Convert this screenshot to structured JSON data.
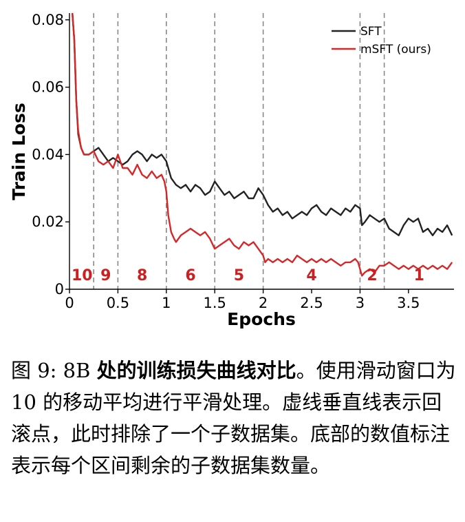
{
  "chart_data": {
    "type": "line",
    "xlabel": "Epochs",
    "ylabel": "Train Loss",
    "xlim": [
      0,
      3.97
    ],
    "ylim": [
      0,
      0.082
    ],
    "x_ticks": [
      "0",
      "0.5",
      "1",
      "1.5",
      "2",
      "2.5",
      "3",
      "3.5"
    ],
    "y_ticks": [
      "0",
      "0.02",
      "0.04",
      "0.06",
      "0.08"
    ],
    "grid": false,
    "legend_position": "top-right",
    "rollback_points": [
      0.25,
      0.5,
      1.0,
      1.5,
      2.0,
      3.0,
      3.25
    ],
    "segment_labels": [
      {
        "x": 0.13,
        "text": "10"
      },
      {
        "x": 0.375,
        "text": "9"
      },
      {
        "x": 0.75,
        "text": "8"
      },
      {
        "x": 1.25,
        "text": "6"
      },
      {
        "x": 1.75,
        "text": "5"
      },
      {
        "x": 2.5,
        "text": "4"
      },
      {
        "x": 3.125,
        "text": "2"
      },
      {
        "x": 3.61,
        "text": "1"
      }
    ],
    "series": [
      {
        "name": "SFT",
        "color": "#222222",
        "points": [
          [
            0.03,
            0.082
          ],
          [
            0.05,
            0.074
          ],
          [
            0.07,
            0.056
          ],
          [
            0.09,
            0.046
          ],
          [
            0.12,
            0.042
          ],
          [
            0.15,
            0.04
          ],
          [
            0.2,
            0.04
          ],
          [
            0.25,
            0.041
          ],
          [
            0.3,
            0.042
          ],
          [
            0.35,
            0.04
          ],
          [
            0.4,
            0.038
          ],
          [
            0.45,
            0.039
          ],
          [
            0.5,
            0.038
          ],
          [
            0.55,
            0.037
          ],
          [
            0.6,
            0.038
          ],
          [
            0.65,
            0.04
          ],
          [
            0.7,
            0.041
          ],
          [
            0.75,
            0.04
          ],
          [
            0.8,
            0.038
          ],
          [
            0.85,
            0.04
          ],
          [
            0.9,
            0.039
          ],
          [
            0.95,
            0.04
          ],
          [
            1.0,
            0.038
          ],
          [
            1.05,
            0.033
          ],
          [
            1.1,
            0.031
          ],
          [
            1.15,
            0.03
          ],
          [
            1.2,
            0.031
          ],
          [
            1.25,
            0.029
          ],
          [
            1.3,
            0.031
          ],
          [
            1.35,
            0.03
          ],
          [
            1.4,
            0.028
          ],
          [
            1.45,
            0.029
          ],
          [
            1.5,
            0.032
          ],
          [
            1.55,
            0.03
          ],
          [
            1.6,
            0.028
          ],
          [
            1.65,
            0.029
          ],
          [
            1.7,
            0.027
          ],
          [
            1.75,
            0.028
          ],
          [
            1.8,
            0.029
          ],
          [
            1.85,
            0.027
          ],
          [
            1.9,
            0.027
          ],
          [
            1.95,
            0.03
          ],
          [
            2.0,
            0.028
          ],
          [
            2.05,
            0.025
          ],
          [
            2.1,
            0.023
          ],
          [
            2.15,
            0.024
          ],
          [
            2.2,
            0.022
          ],
          [
            2.25,
            0.023
          ],
          [
            2.3,
            0.021
          ],
          [
            2.35,
            0.022
          ],
          [
            2.4,
            0.023
          ],
          [
            2.45,
            0.022
          ],
          [
            2.5,
            0.024
          ],
          [
            2.55,
            0.025
          ],
          [
            2.6,
            0.023
          ],
          [
            2.65,
            0.022
          ],
          [
            2.7,
            0.024
          ],
          [
            2.75,
            0.023
          ],
          [
            2.8,
            0.022
          ],
          [
            2.85,
            0.024
          ],
          [
            2.9,
            0.023
          ],
          [
            2.95,
            0.025
          ],
          [
            3.0,
            0.024
          ],
          [
            3.02,
            0.019
          ],
          [
            3.05,
            0.02
          ],
          [
            3.1,
            0.022
          ],
          [
            3.15,
            0.021
          ],
          [
            3.2,
            0.02
          ],
          [
            3.25,
            0.021
          ],
          [
            3.3,
            0.018
          ],
          [
            3.35,
            0.017
          ],
          [
            3.4,
            0.016
          ],
          [
            3.45,
            0.019
          ],
          [
            3.5,
            0.021
          ],
          [
            3.55,
            0.02
          ],
          [
            3.6,
            0.021
          ],
          [
            3.65,
            0.017
          ],
          [
            3.7,
            0.018
          ],
          [
            3.75,
            0.016
          ],
          [
            3.8,
            0.018
          ],
          [
            3.85,
            0.017
          ],
          [
            3.9,
            0.019
          ],
          [
            3.95,
            0.016
          ]
        ]
      },
      {
        "name": "mSFT (ours)",
        "color": "#d62728",
        "points": [
          [
            0.03,
            0.082
          ],
          [
            0.05,
            0.074
          ],
          [
            0.07,
            0.056
          ],
          [
            0.09,
            0.047
          ],
          [
            0.12,
            0.042
          ],
          [
            0.15,
            0.04
          ],
          [
            0.2,
            0.04
          ],
          [
            0.25,
            0.041
          ],
          [
            0.3,
            0.038
          ],
          [
            0.35,
            0.037
          ],
          [
            0.4,
            0.038
          ],
          [
            0.45,
            0.036
          ],
          [
            0.5,
            0.04
          ],
          [
            0.55,
            0.036
          ],
          [
            0.6,
            0.036
          ],
          [
            0.65,
            0.034
          ],
          [
            0.7,
            0.037
          ],
          [
            0.75,
            0.034
          ],
          [
            0.8,
            0.033
          ],
          [
            0.85,
            0.035
          ],
          [
            0.9,
            0.033
          ],
          [
            0.95,
            0.034
          ],
          [
            0.98,
            0.032
          ],
          [
            1.0,
            0.029
          ],
          [
            1.02,
            0.022
          ],
          [
            1.05,
            0.017
          ],
          [
            1.08,
            0.015
          ],
          [
            1.1,
            0.014
          ],
          [
            1.15,
            0.016
          ],
          [
            1.2,
            0.017
          ],
          [
            1.25,
            0.018
          ],
          [
            1.3,
            0.017
          ],
          [
            1.35,
            0.016
          ],
          [
            1.4,
            0.017
          ],
          [
            1.45,
            0.015
          ],
          [
            1.5,
            0.012
          ],
          [
            1.55,
            0.013
          ],
          [
            1.6,
            0.014
          ],
          [
            1.65,
            0.015
          ],
          [
            1.7,
            0.013
          ],
          [
            1.75,
            0.012
          ],
          [
            1.8,
            0.014
          ],
          [
            1.85,
            0.013
          ],
          [
            1.9,
            0.014
          ],
          [
            1.95,
            0.012
          ],
          [
            2.0,
            0.01
          ],
          [
            2.02,
            0.008
          ],
          [
            2.05,
            0.009
          ],
          [
            2.1,
            0.008
          ],
          [
            2.15,
            0.009
          ],
          [
            2.2,
            0.008
          ],
          [
            2.25,
            0.009
          ],
          [
            2.3,
            0.008
          ],
          [
            2.35,
            0.01
          ],
          [
            2.4,
            0.009
          ],
          [
            2.45,
            0.008
          ],
          [
            2.5,
            0.009
          ],
          [
            2.55,
            0.008
          ],
          [
            2.6,
            0.009
          ],
          [
            2.65,
            0.008
          ],
          [
            2.7,
            0.009
          ],
          [
            2.75,
            0.008
          ],
          [
            2.8,
            0.007
          ],
          [
            2.85,
            0.008
          ],
          [
            2.9,
            0.008
          ],
          [
            2.95,
            0.009
          ],
          [
            2.98,
            0.008
          ],
          [
            3.0,
            0.006
          ],
          [
            3.02,
            0.004
          ],
          [
            3.05,
            0.005
          ],
          [
            3.1,
            0.006
          ],
          [
            3.15,
            0.005
          ],
          [
            3.2,
            0.007
          ],
          [
            3.25,
            0.007
          ],
          [
            3.3,
            0.008
          ],
          [
            3.35,
            0.007
          ],
          [
            3.4,
            0.006
          ],
          [
            3.45,
            0.007
          ],
          [
            3.5,
            0.006
          ],
          [
            3.55,
            0.007
          ],
          [
            3.6,
            0.006
          ],
          [
            3.65,
            0.007
          ],
          [
            3.7,
            0.006
          ],
          [
            3.75,
            0.007
          ],
          [
            3.8,
            0.006
          ],
          [
            3.85,
            0.007
          ],
          [
            3.9,
            0.006
          ],
          [
            3.95,
            0.008
          ]
        ]
      }
    ]
  },
  "caption": {
    "prefix": "图 9: 8B ",
    "bold": "处的训练损失曲线对比",
    "rest": "。使用滑动窗口为 10 的移动平均进行平滑处理。虚线垂直线表示回滚点，此时排除了一个子数据集。底部的数值标注表示每个区间剩余的子数据集数量。"
  }
}
